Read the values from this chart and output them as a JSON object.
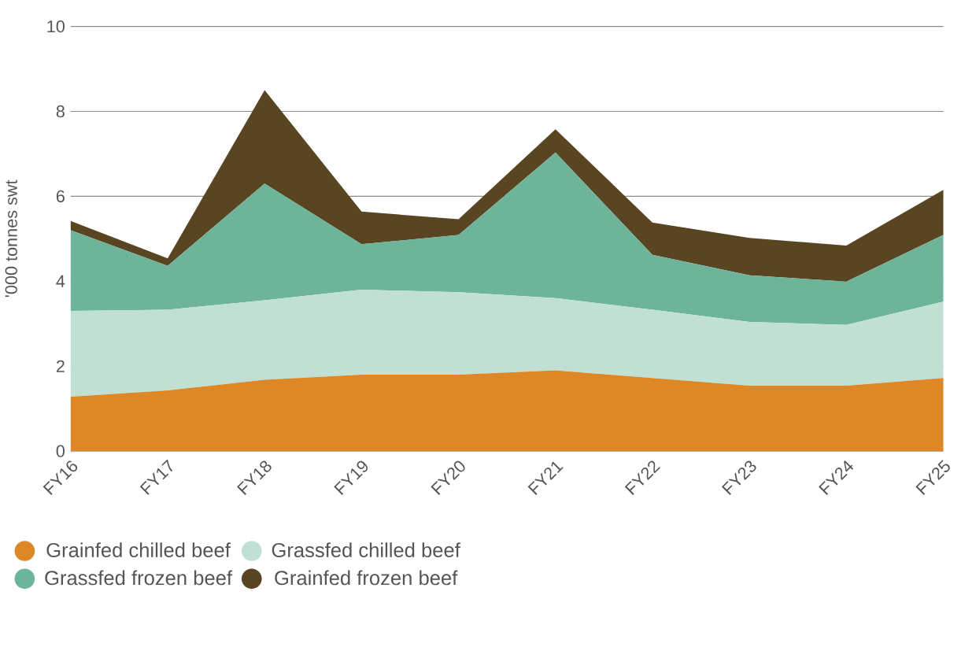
{
  "chart_data": {
    "type": "area",
    "stacked": true,
    "ylabel": "'000 tonnes swt",
    "categories": [
      "FY16",
      "FY17",
      "FY18",
      "FY19",
      "FY20",
      "FY21",
      "FY22",
      "FY23",
      "FY24",
      "FY25"
    ],
    "series": [
      {
        "name": "Grainfed chilled beef",
        "color": "#dd8727",
        "values": [
          1.28,
          1.43,
          1.68,
          1.8,
          1.8,
          1.9,
          1.72,
          1.54,
          1.54,
          1.72
        ]
      },
      {
        "name": "Grassfed chilled beef",
        "color": "#c0e0d4",
        "values": [
          2.02,
          1.9,
          1.87,
          2.0,
          1.94,
          1.7,
          1.61,
          1.5,
          1.43,
          1.8
        ]
      },
      {
        "name": "Grassfed frozen beef",
        "color": "#6db49a",
        "values": [
          1.9,
          1.03,
          2.75,
          1.07,
          1.35,
          3.43,
          1.29,
          1.1,
          1.02,
          1.57
        ]
      },
      {
        "name": "Grainfed frozen beef",
        "color": "#5a4522",
        "values": [
          0.22,
          0.18,
          2.2,
          0.77,
          0.37,
          0.55,
          0.76,
          0.88,
          0.85,
          1.06
        ]
      }
    ],
    "ylim": [
      0,
      10
    ],
    "yticks": [
      0,
      2,
      4,
      6,
      8,
      10
    ],
    "grid": "y",
    "legend": "bottom"
  }
}
